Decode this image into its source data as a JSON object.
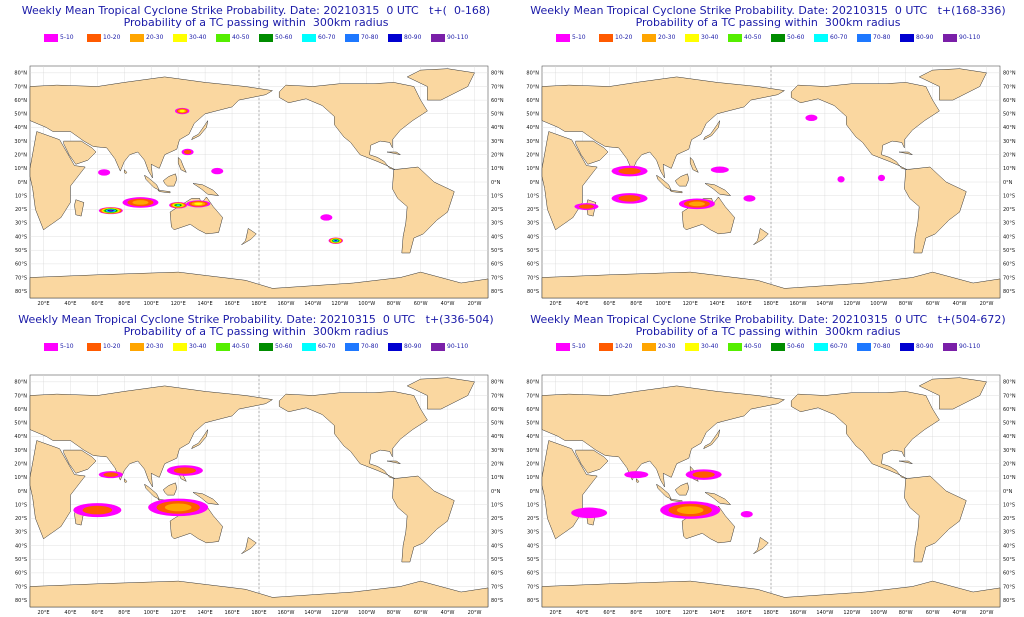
{
  "legend": [
    {
      "label": "5-10",
      "color": "#ff00ff"
    },
    {
      "label": "10-20",
      "color": "#ff5a00"
    },
    {
      "label": "20-30",
      "color": "#ffa500"
    },
    {
      "label": "30-40",
      "color": "#ffff00"
    },
    {
      "label": "40-50",
      "color": "#55ee00"
    },
    {
      "label": "50-60",
      "color": "#008c00"
    },
    {
      "label": "60-70",
      "color": "#00ffff"
    },
    {
      "label": "70-80",
      "color": "#1e78ff"
    },
    {
      "label": "80-90",
      "color": "#0000d0"
    },
    {
      "label": "90-110",
      "color": "#7a1fa8"
    }
  ],
  "colors": {
    "land": "#fad7a0",
    "ocean": "#ffffff",
    "grid": "#d8d8d8",
    "coast": "#333333",
    "title": "#1a1aa8"
  },
  "lat_labels": [
    "80°N",
    "70°N",
    "60°N",
    "50°N",
    "40°N",
    "30°N",
    "20°N",
    "10°N",
    "0°N",
    "10°S",
    "20°S",
    "30°S",
    "40°S",
    "50°S",
    "60°S",
    "70°S",
    "80°S"
  ],
  "lon_labels": [
    "20°E",
    "40°E",
    "60°E",
    "80°E",
    "100°E",
    "120°E",
    "140°E",
    "160°E",
    "180°E",
    "160°W",
    "140°W",
    "120°W",
    "100°W",
    "80°W",
    "60°W",
    "40°W",
    "20°W"
  ],
  "panels": [
    {
      "title_line1": "Weekly Mean Tropical Cyclone Strike Probability. Date: 20210315  0 UTC   t+(  0-168)",
      "title_line2": "Probability of a TC passing within  300km radius",
      "features": [
        {
          "lon": 70,
          "lat": -21,
          "level": 9,
          "size": 2
        },
        {
          "lon": 120,
          "lat": -17,
          "level": 6,
          "size": 1.5
        },
        {
          "lon": 135,
          "lat": -16,
          "level": 3,
          "size": 2
        },
        {
          "lon": 92,
          "lat": -15,
          "level": 2,
          "size": 3
        },
        {
          "lon": -123,
          "lat": -43,
          "level": 8,
          "size": 1.2
        },
        {
          "lon": 123,
          "lat": 52,
          "level": 3,
          "size": 1.2
        },
        {
          "lon": 127,
          "lat": 22,
          "level": 1,
          "size": 1
        },
        {
          "lon": 65,
          "lat": 7,
          "level": 0,
          "size": 1
        },
        {
          "lon": 149,
          "lat": 8,
          "level": 0,
          "size": 1
        },
        {
          "lon": -130,
          "lat": -26,
          "level": 0,
          "size": 1
        }
      ]
    },
    {
      "title_line1": "Weekly Mean Tropical Cyclone Strike Probability. Date: 20210315  0 UTC   t+(168-336)",
      "title_line2": "Probability of a TC passing within  300km radius",
      "features": [
        {
          "lon": 75,
          "lat": 8,
          "level": 1,
          "size": 3
        },
        {
          "lon": 142,
          "lat": 9,
          "level": 0,
          "size": 1.5
        },
        {
          "lon": 43,
          "lat": -18,
          "level": 1,
          "size": 2
        },
        {
          "lon": 75,
          "lat": -12,
          "level": 1,
          "size": 3
        },
        {
          "lon": 125,
          "lat": -16,
          "level": 2,
          "size": 3
        },
        {
          "lon": 164,
          "lat": -12,
          "level": 0,
          "size": 1
        },
        {
          "lon": -150,
          "lat": 47,
          "level": 0,
          "size": 1
        },
        {
          "lon": -128,
          "lat": 2,
          "level": 0,
          "size": 0.6
        },
        {
          "lon": -98,
          "lat": 3,
          "level": 0,
          "size": 0.6
        }
      ]
    },
    {
      "title_line1": "Weekly Mean Tropical Cyclone Strike Probability. Date: 20210315  0 UTC   t+(336-504)",
      "title_line2": "Probability of a TC passing within  300km radius",
      "features": [
        {
          "lon": 70,
          "lat": 12,
          "level": 1,
          "size": 2
        },
        {
          "lon": 125,
          "lat": 15,
          "level": 1,
          "size": 3
        },
        {
          "lon": 60,
          "lat": -14,
          "level": 1,
          "size": 4
        },
        {
          "lon": 120,
          "lat": -12,
          "level": 2,
          "size": 5
        }
      ]
    },
    {
      "title_line1": "Weekly Mean Tropical Cyclone Strike Probability. Date: 20210315  0 UTC   t+(504-672)",
      "title_line2": "Probability of a TC passing within  300km radius",
      "features": [
        {
          "lon": 80,
          "lat": 12,
          "level": 0,
          "size": 2
        },
        {
          "lon": 130,
          "lat": 12,
          "level": 1,
          "size": 3
        },
        {
          "lon": 45,
          "lat": -16,
          "level": 0,
          "size": 3
        },
        {
          "lon": 120,
          "lat": -14,
          "level": 2,
          "size": 5
        },
        {
          "lon": 162,
          "lat": -17,
          "level": 0,
          "size": 1
        }
      ]
    }
  ]
}
